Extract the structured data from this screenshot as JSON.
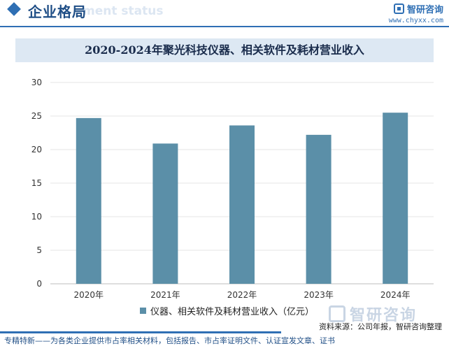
{
  "header": {
    "section_title": "企业格局",
    "section_subtitle": "ment status",
    "brand_name": "智研咨询",
    "brand_url": "www.chyxx.com"
  },
  "chart_data": {
    "type": "bar",
    "title": "2020-2024年聚光科技仪器、相关软件及耗材营业收入",
    "categories": [
      "2020年",
      "2021年",
      "2022年",
      "2023年",
      "2024年"
    ],
    "series": [
      {
        "name": "仪器、相关软件及耗材营业收入（亿元）",
        "values": [
          24.7,
          20.9,
          23.6,
          22.2,
          25.5
        ],
        "color": "#5b8fa8"
      }
    ],
    "ylim": [
      0,
      30
    ],
    "yticks": [
      "0",
      "5",
      "10",
      "15",
      "20",
      "25",
      "30"
    ],
    "grid": true,
    "legend_position": "bottom"
  },
  "watermark": {
    "text": "智研咨询"
  },
  "source": "资料来源：公司年报，智研咨询整理",
  "footer": "专精特新——为各类企业提供市占率相关材料，包括报告、市占率证明文件、认证宣发文章、证书"
}
